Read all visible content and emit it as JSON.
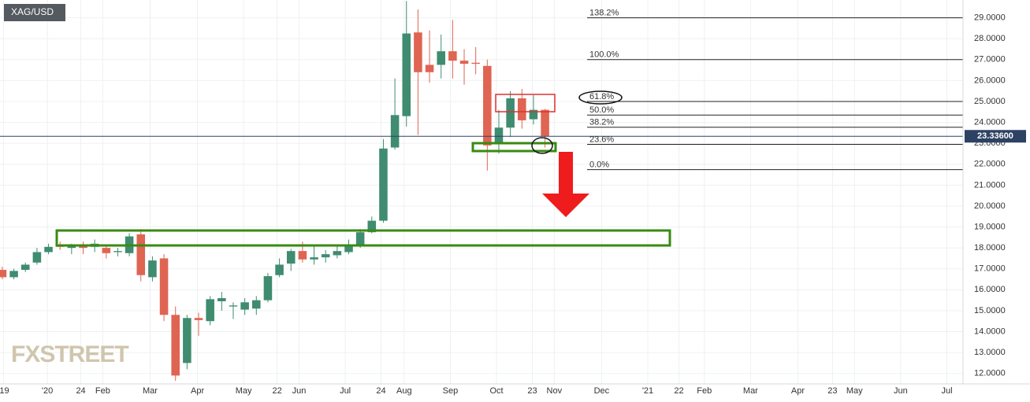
{
  "chart_data": {
    "type": "candlestick",
    "symbol": "XAG/USD",
    "watermark": "FXSTREET",
    "up_color": "#3f8c70",
    "down_color": "#df6452",
    "grid": true,
    "x": [
      0,
      1,
      2,
      3,
      4,
      5,
      6,
      7,
      8,
      9,
      10,
      11,
      12,
      13,
      14,
      15,
      16,
      17,
      18,
      19,
      20,
      21,
      22,
      23,
      24,
      25,
      26,
      27,
      28,
      29,
      30,
      31,
      32,
      33,
      34,
      35,
      36,
      37,
      38,
      39,
      40,
      41,
      42,
      43,
      44,
      45,
      46,
      47
    ],
    "open": [
      16.95,
      16.6,
      16.95,
      17.3,
      17.8,
      18.15,
      18.0,
      18.1,
      18.05,
      18.0,
      17.8,
      17.75,
      18.65,
      16.6,
      17.5,
      14.8,
      12.5,
      14.65,
      14.5,
      15.45,
      15.2,
      15.05,
      15.1,
      15.5,
      16.7,
      17.25,
      17.85,
      17.45,
      17.55,
      17.65,
      17.8,
      18.1,
      18.75,
      19.3,
      22.8,
      24.3,
      28.3,
      26.75,
      26.75,
      27.4,
      26.95,
      26.85,
      26.7,
      22.95,
      23.75,
      25.15,
      24.15,
      24.6
    ],
    "high": [
      17.1,
      17.0,
      17.3,
      18.0,
      18.2,
      18.3,
      18.2,
      18.3,
      18.4,
      18.1,
      18.0,
      18.7,
      18.9,
      17.6,
      17.7,
      15.2,
      14.8,
      14.9,
      15.7,
      15.9,
      15.4,
      15.6,
      15.7,
      16.8,
      17.5,
      17.95,
      18.3,
      18.1,
      17.9,
      18.1,
      18.4,
      18.9,
      19.5,
      23.2,
      26.1,
      29.8,
      29.4,
      28.4,
      28.2,
      28.9,
      27.5,
      27.6,
      27.0,
      24.6,
      25.5,
      25.6,
      25.3,
      24.65
    ],
    "low": [
      16.5,
      16.5,
      16.85,
      17.2,
      17.7,
      17.9,
      17.7,
      17.7,
      17.8,
      17.5,
      17.6,
      17.6,
      16.4,
      16.4,
      14.5,
      11.65,
      12.2,
      13.8,
      14.3,
      15.0,
      14.6,
      14.8,
      14.8,
      15.4,
      16.6,
      16.9,
      17.3,
      17.2,
      17.3,
      17.5,
      17.7,
      18.0,
      18.7,
      19.2,
      22.7,
      23.8,
      23.4,
      25.9,
      26.1,
      26.1,
      25.8,
      26.3,
      21.7,
      22.5,
      23.3,
      23.7,
      23.9,
      22.8
    ],
    "close": [
      16.6,
      16.9,
      17.2,
      17.8,
      18.05,
      18.05,
      18.1,
      18.0,
      18.2,
      17.75,
      17.85,
      18.55,
      16.7,
      17.4,
      14.8,
      11.9,
      14.65,
      14.55,
      15.55,
      15.6,
      15.25,
      15.4,
      15.5,
      16.65,
      17.2,
      17.85,
      17.45,
      17.55,
      17.7,
      17.85,
      18.1,
      18.75,
      19.3,
      22.75,
      24.35,
      28.25,
      26.4,
      26.4,
      27.4,
      26.95,
      26.8,
      26.8,
      22.9,
      23.75,
      25.15,
      24.1,
      24.6,
      23.35
    ],
    "xlim": [
      -0.2,
      83.2
    ],
    "ylim": [
      11.5,
      29.85
    ],
    "xticks": [
      {
        "value": 0.1,
        "label": "'19"
      },
      {
        "value": 3.9,
        "label": "'20"
      },
      {
        "value": 6.8,
        "label": "24"
      },
      {
        "value": 8.7,
        "label": "Feb"
      },
      {
        "value": 12.8,
        "label": "Mar"
      },
      {
        "value": 16.9,
        "label": "Apr"
      },
      {
        "value": 20.9,
        "label": "May"
      },
      {
        "value": 23.8,
        "label": "22"
      },
      {
        "value": 25.7,
        "label": "Jun"
      },
      {
        "value": 29.7,
        "label": "Jul"
      },
      {
        "value": 32.8,
        "label": "24"
      },
      {
        "value": 34.8,
        "label": "Aug"
      },
      {
        "value": 38.8,
        "label": "Sep"
      },
      {
        "value": 42.8,
        "label": "Oct"
      },
      {
        "value": 45.9,
        "label": "23"
      },
      {
        "value": 47.8,
        "label": "Nov"
      },
      {
        "value": 51.9,
        "label": "Dec"
      },
      {
        "value": 55.9,
        "label": "'21"
      },
      {
        "value": 58.6,
        "label": "22"
      },
      {
        "value": 60.8,
        "label": "Feb"
      },
      {
        "value": 64.8,
        "label": "Mar"
      },
      {
        "value": 68.9,
        "label": "Apr"
      },
      {
        "value": 71.9,
        "label": "23"
      },
      {
        "value": 73.8,
        "label": "May"
      },
      {
        "value": 77.8,
        "label": "Jun"
      },
      {
        "value": 81.8,
        "label": "Jul"
      }
    ],
    "yticks": [
      {
        "value": 12,
        "label": "12.0000"
      },
      {
        "value": 13,
        "label": "13.0000"
      },
      {
        "value": 14,
        "label": "14.0000"
      },
      {
        "value": 15,
        "label": "15.0000"
      },
      {
        "value": 16,
        "label": "16.0000"
      },
      {
        "value": 17,
        "label": "17.0000"
      },
      {
        "value": 18,
        "label": "18.0000"
      },
      {
        "value": 19,
        "label": "19.0000"
      },
      {
        "value": 20,
        "label": "20.0000"
      },
      {
        "value": 21,
        "label": "21.0000"
      },
      {
        "value": 22,
        "label": "22.0000"
      },
      {
        "value": 23,
        "label": "23.0000"
      },
      {
        "value": 24,
        "label": "24.0000"
      },
      {
        "value": 25,
        "label": "25.0000"
      },
      {
        "value": 26,
        "label": "26.0000"
      },
      {
        "value": 27,
        "label": "27.0000"
      },
      {
        "value": 28,
        "label": "28.0000"
      },
      {
        "value": 29,
        "label": "29.0000"
      }
    ],
    "fib_levels": [
      {
        "label": "138.2%",
        "value": 29.0
      },
      {
        "label": "100.0%",
        "value": 27.0
      },
      {
        "label": "61.8%",
        "value": 25.0
      },
      {
        "label": "50.0%",
        "value": 24.35
      },
      {
        "label": "38.2%",
        "value": 23.77
      },
      {
        "label": "23.6%",
        "value": 22.95
      },
      {
        "label": "0.0%",
        "value": 21.74
      }
    ],
    "last_price": {
      "value": 23.336,
      "label": "23.33600"
    }
  }
}
